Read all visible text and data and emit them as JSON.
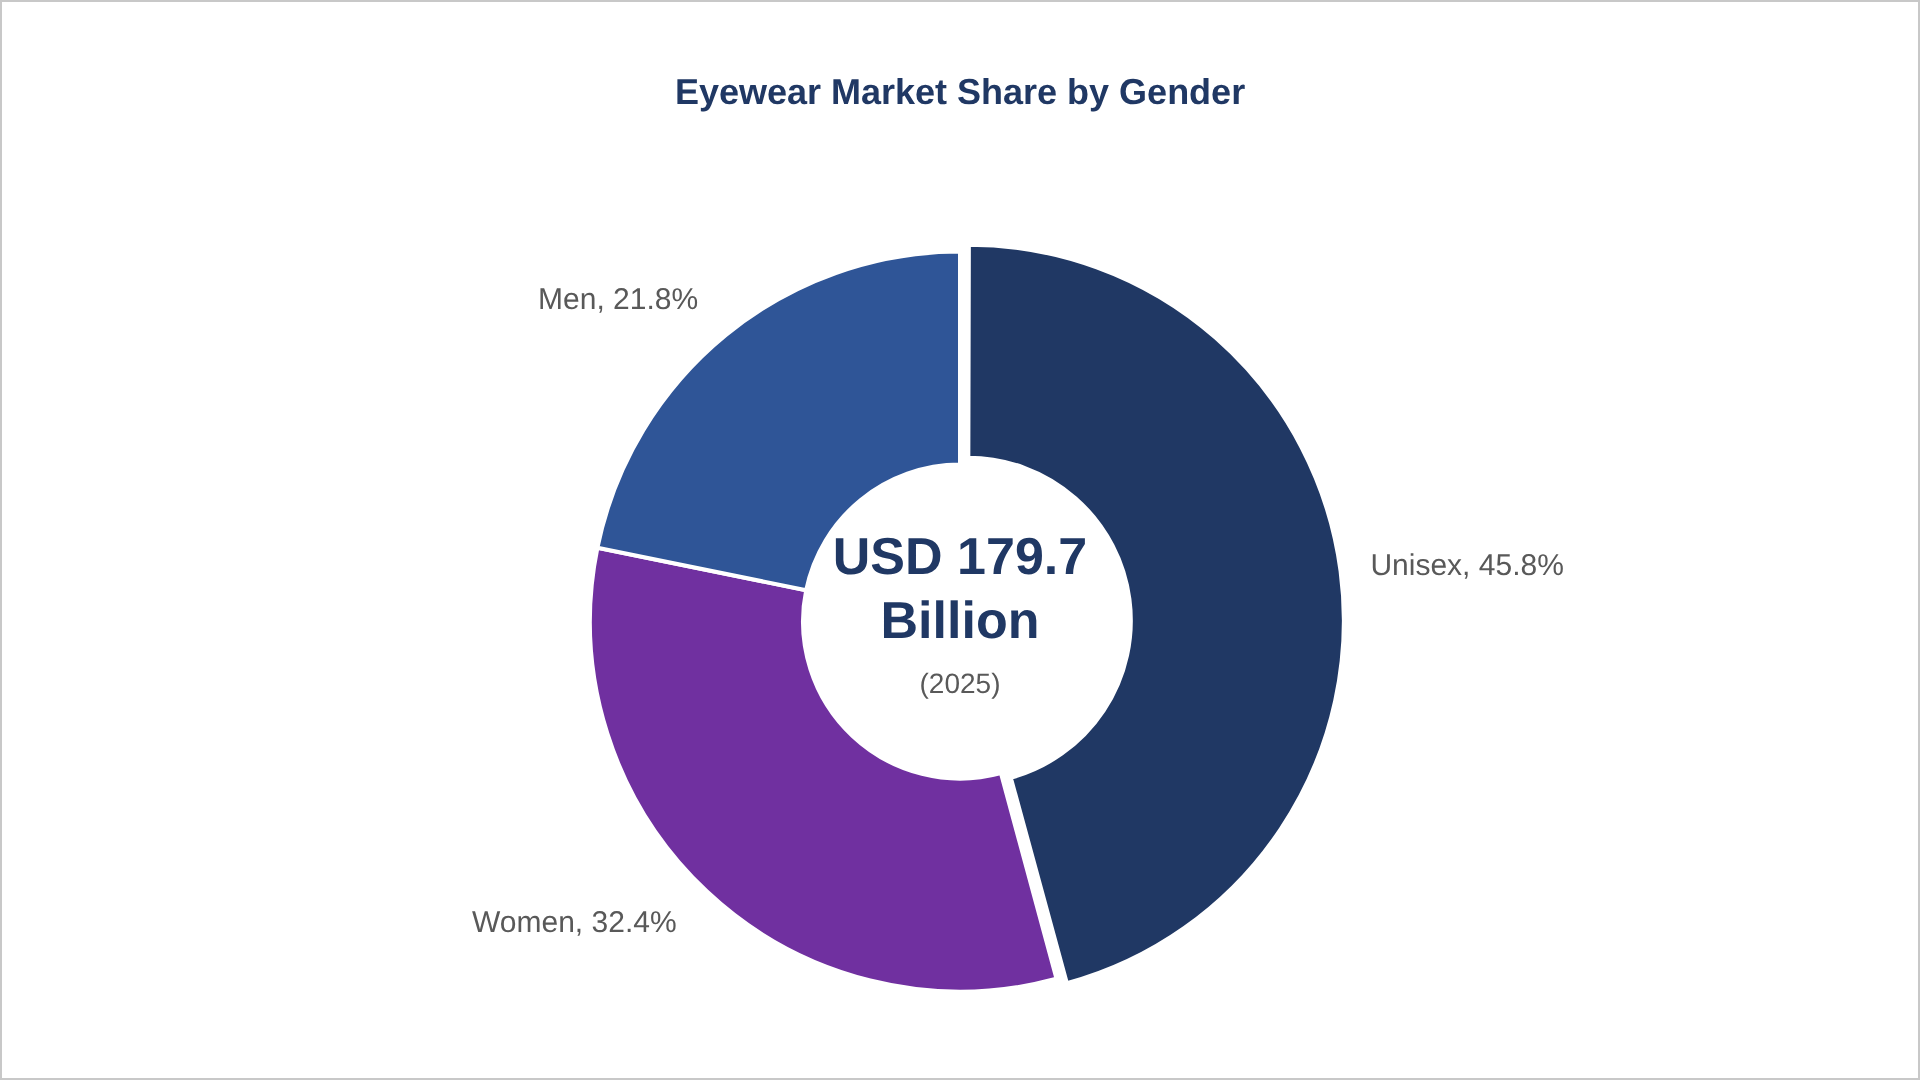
{
  "chart_data": {
    "type": "donut",
    "title": "Eyewear Market Share by Gender",
    "categories": [
      "Unisex",
      "Women",
      "Men"
    ],
    "values": [
      45.8,
      32.4,
      21.8
    ],
    "value_labels": [
      "45.8%",
      "32.4%",
      "21.8%"
    ],
    "colors": [
      "#203864",
      "#7030a0",
      "#2f5597"
    ],
    "annotations": [
      "USD 179.7 Billion",
      "(2025)"
    ],
    "legend": false
  }
}
